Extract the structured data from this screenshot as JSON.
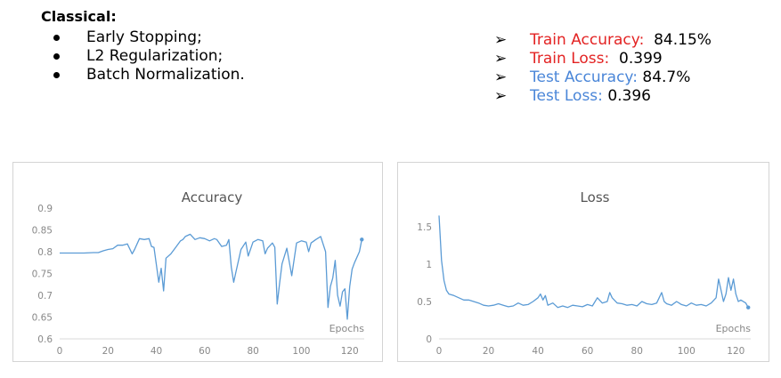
{
  "heading": "Classical:",
  "methods": [
    "Early Stopping;",
    "L2 Regularization;",
    "Batch Normalization."
  ],
  "metrics": [
    {
      "label": "Train Accuracy:",
      "value": "84.15%",
      "color": "#e32323"
    },
    {
      "label": "Train Loss:",
      "value": "0.399",
      "color": "#e32323"
    },
    {
      "label": "Test Accuracy:",
      "value": "84.7%",
      "color": "#4a86d8"
    },
    {
      "label": "Test Loss:",
      "value": "0.396",
      "color": "#4a86d8"
    }
  ],
  "line_color": "#5b9bd5",
  "chart_data": [
    {
      "type": "line",
      "title": "Accuracy",
      "xlabel": "Epochs",
      "ylabel": "",
      "xlim": [
        0,
        126
      ],
      "ylim": [
        0.6,
        0.9
      ],
      "xticks": [
        0,
        20,
        40,
        60,
        80,
        100,
        120
      ],
      "yticks": [
        0.6,
        0.65,
        0.7,
        0.75,
        0.8,
        0.85,
        0.9
      ],
      "xtick_labels": [
        "0",
        "20",
        "40",
        "60",
        "80",
        "100",
        "120"
      ],
      "ytick_labels": [
        "0.6",
        "0.65",
        "0.7",
        "0.75",
        "0.8",
        "0.85",
        "0.9"
      ],
      "grid": false,
      "series": [
        {
          "x": [
            0,
            10,
            14,
            16,
            18,
            20,
            22,
            24,
            26,
            28,
            30,
            31,
            33,
            35,
            37,
            38,
            39,
            40,
            41,
            42,
            43,
            44,
            46,
            48,
            50,
            51,
            52,
            54,
            56,
            58,
            60,
            62,
            64,
            65,
            67,
            69,
            70,
            71,
            72,
            73,
            75,
            77,
            78,
            80,
            82,
            84,
            85,
            86,
            88,
            89,
            90,
            91,
            92,
            94,
            96,
            98,
            100,
            102,
            103,
            104,
            106,
            108,
            110,
            111,
            112,
            113,
            114,
            115,
            116,
            117,
            118,
            119,
            120,
            121,
            122,
            124,
            125
          ],
          "values": [
            0.797,
            0.797,
            0.798,
            0.798,
            0.802,
            0.805,
            0.807,
            0.815,
            0.815,
            0.818,
            0.795,
            0.805,
            0.83,
            0.828,
            0.83,
            0.812,
            0.81,
            0.77,
            0.73,
            0.762,
            0.71,
            0.785,
            0.795,
            0.81,
            0.825,
            0.828,
            0.835,
            0.84,
            0.828,
            0.832,
            0.83,
            0.825,
            0.83,
            0.828,
            0.812,
            0.815,
            0.828,
            0.765,
            0.73,
            0.755,
            0.805,
            0.822,
            0.79,
            0.822,
            0.828,
            0.825,
            0.795,
            0.808,
            0.82,
            0.81,
            0.68,
            0.728,
            0.772,
            0.808,
            0.745,
            0.82,
            0.825,
            0.822,
            0.8,
            0.82,
            0.828,
            0.835,
            0.8,
            0.672,
            0.72,
            0.74,
            0.78,
            0.7,
            0.675,
            0.708,
            0.715,
            0.645,
            0.72,
            0.76,
            0.775,
            0.8,
            0.828
          ]
        }
      ]
    },
    {
      "type": "line",
      "title": "Loss",
      "xlabel": "Epochs",
      "ylabel": "",
      "xlim": [
        0,
        126
      ],
      "ylim": [
        0,
        1.75
      ],
      "xticks": [
        0,
        20,
        40,
        60,
        80,
        100,
        120
      ],
      "yticks": [
        0,
        0.5,
        1,
        1.5
      ],
      "xtick_labels": [
        "0",
        "20",
        "40",
        "60",
        "80",
        "100",
        "120"
      ],
      "ytick_labels": [
        "0",
        "0.5",
        "1",
        "1.5"
      ],
      "grid": false,
      "series": [
        {
          "x": [
            0,
            1,
            2,
            3,
            4,
            6,
            8,
            10,
            12,
            14,
            16,
            18,
            20,
            22,
            24,
            26,
            28,
            30,
            32,
            34,
            36,
            38,
            40,
            41,
            42,
            43,
            44,
            46,
            48,
            50,
            52,
            54,
            56,
            58,
            60,
            62,
            64,
            66,
            68,
            69,
            70,
            72,
            74,
            76,
            78,
            80,
            82,
            84,
            86,
            88,
            89,
            90,
            91,
            92,
            94,
            96,
            98,
            100,
            102,
            104,
            106,
            108,
            110,
            112,
            113,
            114,
            115,
            116,
            117,
            118,
            119,
            120,
            121,
            122,
            124,
            125
          ],
          "values": [
            1.65,
            1.05,
            0.78,
            0.65,
            0.6,
            0.58,
            0.55,
            0.52,
            0.52,
            0.5,
            0.48,
            0.45,
            0.44,
            0.45,
            0.47,
            0.45,
            0.43,
            0.44,
            0.48,
            0.45,
            0.46,
            0.5,
            0.55,
            0.6,
            0.52,
            0.58,
            0.45,
            0.48,
            0.42,
            0.44,
            0.42,
            0.45,
            0.44,
            0.43,
            0.46,
            0.44,
            0.55,
            0.48,
            0.5,
            0.62,
            0.55,
            0.48,
            0.47,
            0.45,
            0.46,
            0.44,
            0.5,
            0.47,
            0.46,
            0.48,
            0.55,
            0.62,
            0.5,
            0.47,
            0.45,
            0.5,
            0.46,
            0.44,
            0.48,
            0.45,
            0.46,
            0.44,
            0.48,
            0.55,
            0.8,
            0.65,
            0.5,
            0.6,
            0.82,
            0.65,
            0.8,
            0.6,
            0.5,
            0.52,
            0.48,
            0.42
          ]
        }
      ]
    }
  ]
}
